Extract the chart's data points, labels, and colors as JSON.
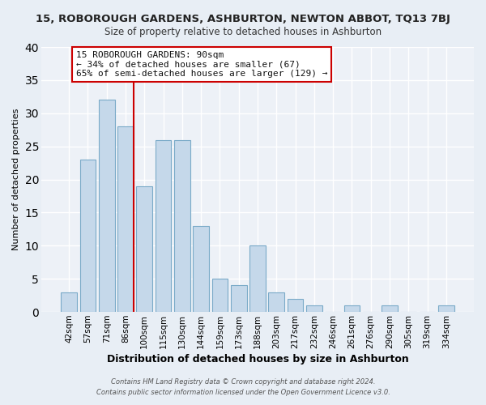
{
  "title": "15, ROBOROUGH GARDENS, ASHBURTON, NEWTON ABBOT, TQ13 7BJ",
  "subtitle": "Size of property relative to detached houses in Ashburton",
  "xlabel": "Distribution of detached houses by size in Ashburton",
  "ylabel": "Number of detached properties",
  "bar_labels": [
    "42sqm",
    "57sqm",
    "71sqm",
    "86sqm",
    "100sqm",
    "115sqm",
    "130sqm",
    "144sqm",
    "159sqm",
    "173sqm",
    "188sqm",
    "203sqm",
    "217sqm",
    "232sqm",
    "246sqm",
    "261sqm",
    "276sqm",
    "290sqm",
    "305sqm",
    "319sqm",
    "334sqm"
  ],
  "bar_values": [
    3,
    23,
    32,
    28,
    19,
    26,
    26,
    13,
    5,
    4,
    10,
    3,
    2,
    1,
    0,
    1,
    0,
    1,
    0,
    0,
    1
  ],
  "bar_color": "#c5d8ea",
  "bar_edge_color": "#7aaac8",
  "ylim": [
    0,
    40
  ],
  "yticks": [
    0,
    5,
    10,
    15,
    20,
    25,
    30,
    35,
    40
  ],
  "vline_index": 3.425,
  "vline_color": "#cc0000",
  "annotation_lines": [
    "15 ROBOROUGH GARDENS: 90sqm",
    "← 34% of detached houses are smaller (67)",
    "65% of semi-detached houses are larger (129) →"
  ],
  "footer_line1": "Contains HM Land Registry data © Crown copyright and database right 2024.",
  "footer_line2": "Contains public sector information licensed under the Open Government Licence v3.0.",
  "bg_color": "#e8eef5",
  "plot_bg_color": "#edf1f7"
}
